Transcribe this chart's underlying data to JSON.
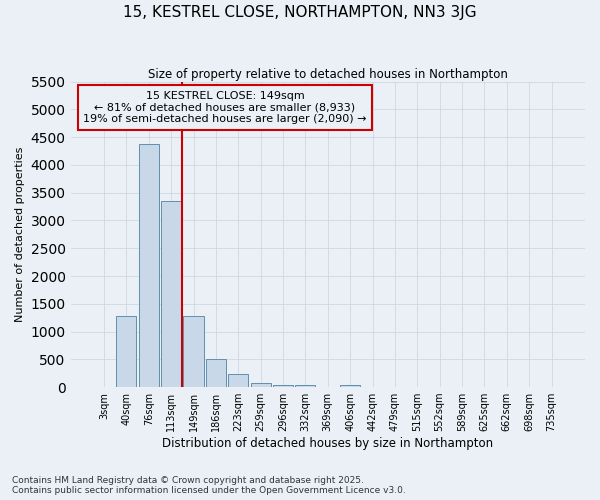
{
  "title": "15, KESTREL CLOSE, NORTHAMPTON, NN3 3JG",
  "subtitle": "Size of property relative to detached houses in Northampton",
  "xlabel": "Distribution of detached houses by size in Northampton",
  "ylabel": "Number of detached properties",
  "categories": [
    "3sqm",
    "40sqm",
    "76sqm",
    "113sqm",
    "149sqm",
    "186sqm",
    "223sqm",
    "259sqm",
    "296sqm",
    "332sqm",
    "369sqm",
    "406sqm",
    "442sqm",
    "479sqm",
    "515sqm",
    "552sqm",
    "589sqm",
    "625sqm",
    "662sqm",
    "698sqm",
    "735sqm"
  ],
  "values": [
    0,
    1280,
    4380,
    3350,
    1280,
    500,
    230,
    80,
    40,
    30,
    0,
    30,
    0,
    0,
    0,
    0,
    0,
    0,
    0,
    0,
    0
  ],
  "bar_color": "#c8d8e8",
  "bar_edge_color": "#6090b0",
  "vline_x_index": 4,
  "vline_color": "#cc0000",
  "annotation_title": "15 KESTREL CLOSE: 149sqm",
  "annotation_line1": "← 81% of detached houses are smaller (8,933)",
  "annotation_line2": "19% of semi-detached houses are larger (2,090) →",
  "annotation_box_color": "#cc0000",
  "ylim": [
    0,
    5500
  ],
  "yticks": [
    0,
    500,
    1000,
    1500,
    2000,
    2500,
    3000,
    3500,
    4000,
    4500,
    5000,
    5500
  ],
  "grid_color": "#c8d4e0",
  "bg_color": "#eaf0f6",
  "footnote1": "Contains HM Land Registry data © Crown copyright and database right 2025.",
  "footnote2": "Contains public sector information licensed under the Open Government Licence v3.0."
}
